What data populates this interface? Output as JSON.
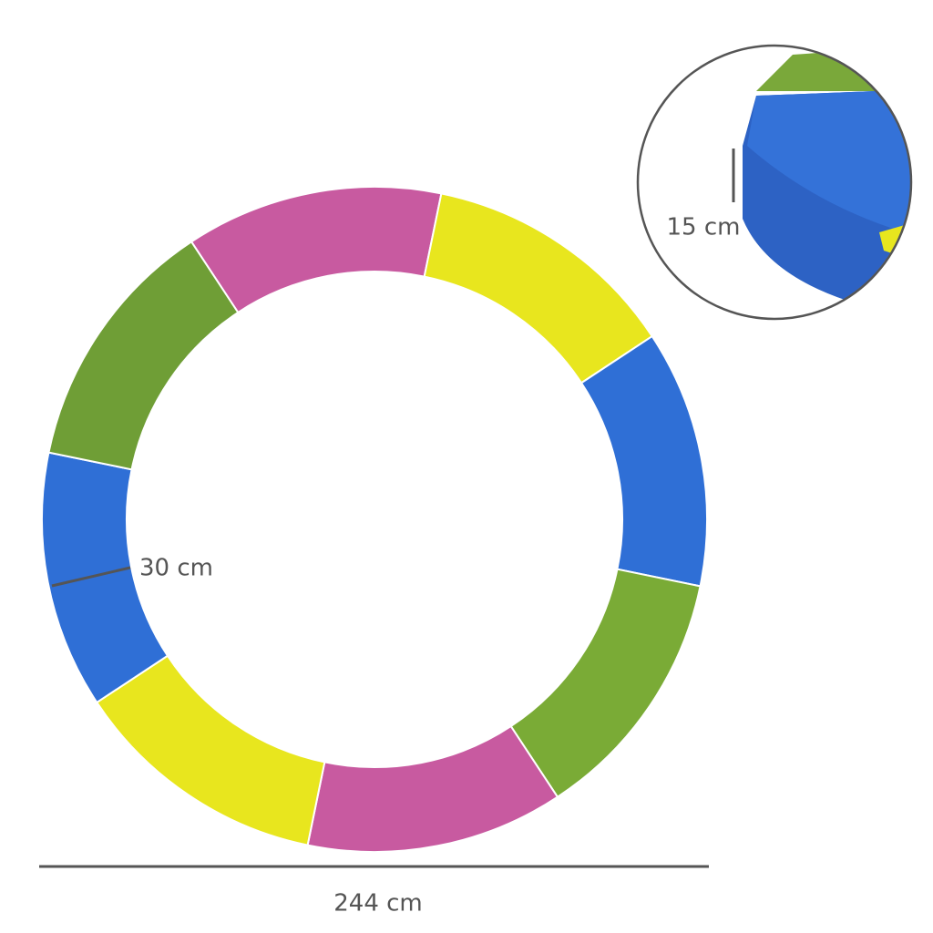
{
  "dimensions": {
    "pad_width": "30 cm",
    "pad_thickness": "15 cm",
    "diameter": "244 cm"
  }
}
